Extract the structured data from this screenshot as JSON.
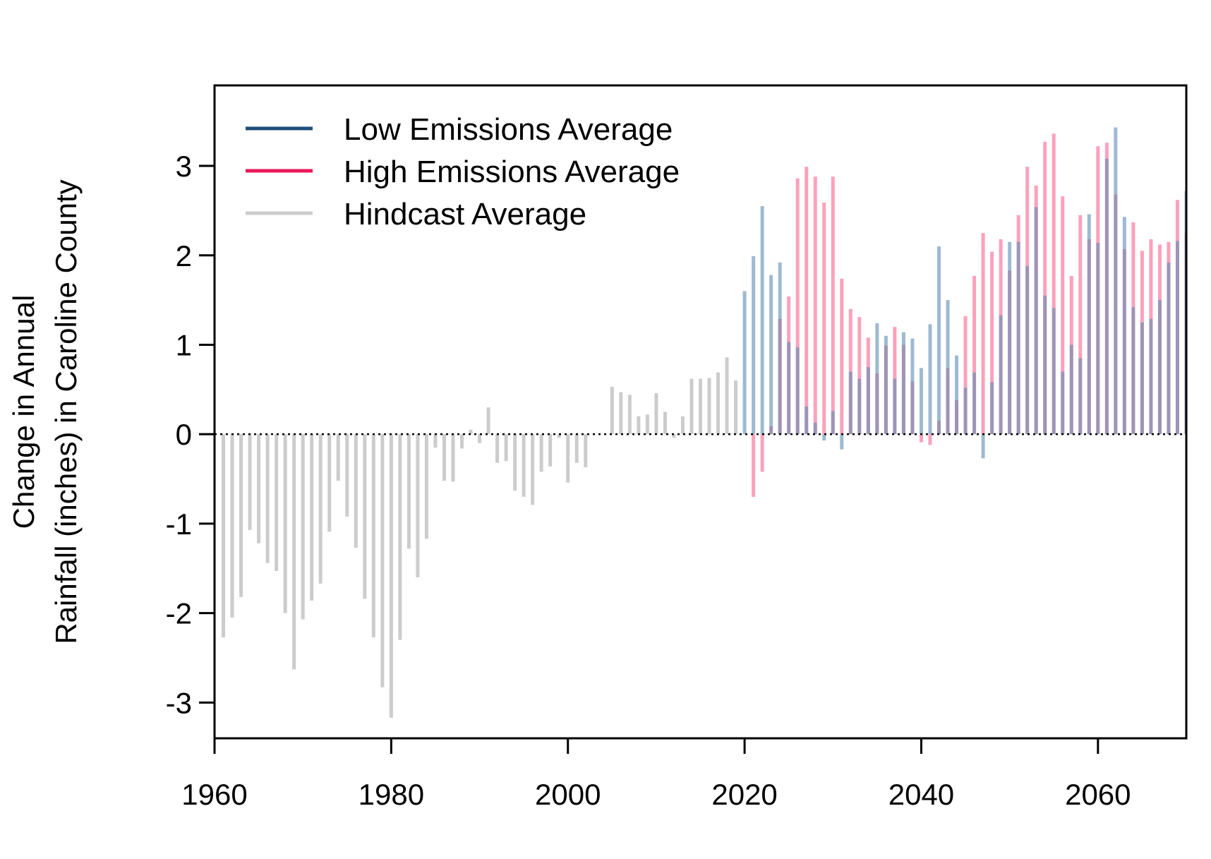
{
  "chart_data": {
    "type": "bar",
    "title": "",
    "xlabel": "",
    "ylabel_line1": "Change in Annual",
    "ylabel_line2": "Rainfall (inches) in Caroline County",
    "xlim": [
      1960,
      2070
    ],
    "ylim": [
      -3.4,
      3.9
    ],
    "xticks": [
      1960,
      1980,
      2000,
      2020,
      2040,
      2060
    ],
    "yticks": [
      -3,
      -2,
      -1,
      0,
      1,
      2,
      3
    ],
    "xtick_labels": [
      "1960",
      "1980",
      "2000",
      "2020",
      "2040",
      "2060"
    ],
    "ytick_labels": [
      "-3",
      "-2",
      "-1",
      "0",
      "1",
      "2",
      "3"
    ],
    "zero_line": "dotted",
    "grid": false,
    "legend_position": "top-left",
    "legend": [
      {
        "name": "Low Emissions Average",
        "color": "#1f4e79"
      },
      {
        "name": "High Emissions Average",
        "color": "#e8195a"
      },
      {
        "name": "Hindcast Average",
        "color": "#cccccc"
      }
    ],
    "series": [
      {
        "name": "Hindcast Average",
        "color": "#cccccc",
        "x": [
          1961,
          1962,
          1963,
          1964,
          1965,
          1966,
          1967,
          1968,
          1969,
          1970,
          1971,
          1972,
          1973,
          1974,
          1975,
          1976,
          1977,
          1978,
          1979,
          1980,
          1981,
          1982,
          1983,
          1984,
          1985,
          1986,
          1987,
          1988,
          1989,
          1990,
          1991,
          1992,
          1993,
          1994,
          1995,
          1996,
          1997,
          1998,
          1999,
          2000,
          2001,
          2002,
          2003,
          2004,
          2005,
          2006,
          2007,
          2008,
          2009,
          2010,
          2011,
          2012,
          2013,
          2014,
          2015,
          2016,
          2017,
          2018,
          2019
        ],
        "values": [
          -2.27,
          -2.05,
          -1.82,
          -1.07,
          -1.22,
          -1.44,
          -1.53,
          -2.0,
          -2.63,
          -2.07,
          -1.86,
          -1.67,
          -1.09,
          -0.52,
          -0.92,
          -1.27,
          -1.84,
          -2.27,
          -2.83,
          -3.17,
          -2.3,
          -1.28,
          -1.6,
          -1.17,
          -0.15,
          -0.52,
          -0.53,
          -0.16,
          0.05,
          -0.1,
          0.3,
          -0.32,
          -0.3,
          -0.63,
          -0.7,
          -0.79,
          -0.42,
          -0.36,
          -0.04,
          -0.54,
          -0.32,
          -0.37,
          0.0,
          0.0,
          0.53,
          0.47,
          0.44,
          0.2,
          0.22,
          0.46,
          0.25,
          -0.04,
          0.2,
          0.62,
          0.62,
          0.63,
          0.69,
          0.86,
          0.6
        ]
      },
      {
        "name": "Low Emissions Average",
        "color": "#1f4e79",
        "x": [
          2020,
          2021,
          2022,
          2023,
          2024,
          2025,
          2026,
          2027,
          2028,
          2029,
          2030,
          2031,
          2032,
          2033,
          2034,
          2035,
          2036,
          2037,
          2038,
          2039,
          2040,
          2041,
          2042,
          2043,
          2044,
          2045,
          2046,
          2047,
          2048,
          2049,
          2050,
          2051,
          2052,
          2053,
          2054,
          2055,
          2056,
          2057,
          2058,
          2059,
          2060,
          2061,
          2062,
          2063,
          2064,
          2065,
          2066,
          2067,
          2068,
          2069,
          2070
        ],
        "values": [
          1.6,
          1.99,
          2.55,
          1.78,
          1.92,
          1.03,
          0.97,
          0.31,
          0.13,
          -0.07,
          0.26,
          -0.17,
          0.7,
          0.62,
          0.75,
          1.24,
          1.1,
          0.62,
          1.14,
          1.07,
          0.74,
          1.23,
          2.1,
          1.5,
          0.88,
          0.52,
          0.69,
          -0.27,
          0.58,
          1.33,
          2.15,
          2.15,
          1.88,
          2.54,
          1.55,
          1.41,
          0.7,
          1.0,
          0.85,
          2.46,
          2.14,
          3.08,
          3.43,
          2.43,
          1.42,
          1.25,
          1.29,
          1.5,
          1.92,
          2.16,
          2.72
        ]
      },
      {
        "name": "High Emissions Average",
        "color": "#e8195a",
        "x": [
          2020,
          2021,
          2022,
          2023,
          2024,
          2025,
          2026,
          2027,
          2028,
          2029,
          2030,
          2031,
          2032,
          2033,
          2034,
          2035,
          2036,
          2037,
          2038,
          2039,
          2040,
          2041,
          2042,
          2043,
          2044,
          2045,
          2046,
          2047,
          2048,
          2049,
          2050,
          2051,
          2052,
          2053,
          2054,
          2055,
          2056,
          2057,
          2058,
          2059,
          2060,
          2061,
          2062,
          2063,
          2064,
          2065,
          2066,
          2067,
          2068,
          2069,
          2070
        ],
        "values": [
          0.0,
          -0.7,
          -0.42,
          0.09,
          1.29,
          1.54,
          2.86,
          2.99,
          2.88,
          2.59,
          2.88,
          1.74,
          1.4,
          1.31,
          1.08,
          0.68,
          0.99,
          1.2,
          1.0,
          0.59,
          -0.09,
          -0.12,
          0.15,
          0.74,
          0.38,
          1.32,
          1.77,
          2.25,
          2.04,
          2.18,
          1.83,
          2.45,
          2.99,
          2.78,
          3.27,
          3.36,
          2.66,
          1.77,
          2.45,
          2.18,
          3.22,
          3.26,
          2.68,
          2.07,
          2.37,
          2.05,
          2.18,
          2.12,
          2.15,
          2.62,
          2.25
        ]
      }
    ]
  }
}
